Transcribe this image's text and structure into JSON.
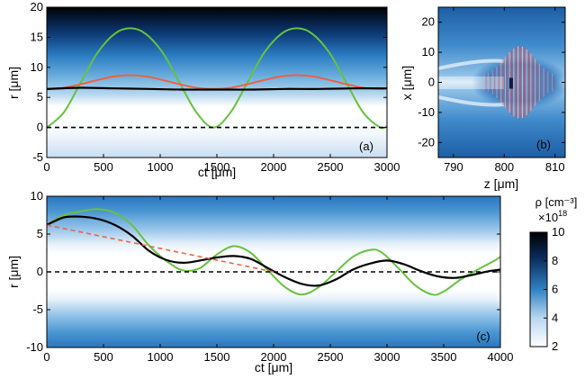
{
  "figure": {
    "colorbar": {
      "label": "ρ [cm⁻³]",
      "multiplier_base": "×10",
      "multiplier_exp": "18",
      "ticks": [
        "2",
        "4",
        "6",
        "8",
        "10"
      ],
      "range": [
        2,
        10
      ],
      "colors": [
        "#ffffff",
        "#b9d7ee",
        "#2f82c4",
        "#0a2a5a",
        "#000000"
      ]
    }
  },
  "chart_data": [
    {
      "id": "a",
      "type": "line",
      "panel_label": "(a)",
      "xlabel": "ct [μm]",
      "ylabel": "r [μm]",
      "xlim": [
        0,
        3000
      ],
      "ylim": [
        -5,
        20
      ],
      "xticks": [
        "0",
        "500",
        "1000",
        "1500",
        "2000",
        "2500",
        "3000"
      ],
      "yticks": [
        "-5",
        "0",
        "5",
        "10",
        "15",
        "20"
      ],
      "background": "density map, dark above r≈12 μm, white near r≈0–3 μm",
      "series": [
        {
          "color": "#66c23f",
          "style": "solid",
          "x": [
            0,
            150,
            300,
            450,
            600,
            735,
            870,
            1020,
            1170,
            1320,
            1470,
            1620,
            1770,
            1920,
            2070,
            2205,
            2340,
            2490,
            2640,
            2790,
            2940,
            3000
          ],
          "y": [
            0,
            2.5,
            7.5,
            12.5,
            15.6,
            16.5,
            15.6,
            12.5,
            7.5,
            2.5,
            0,
            2.5,
            7.5,
            12.5,
            15.6,
            16.5,
            15.6,
            12.5,
            7.5,
            2.5,
            0,
            0.2
          ]
        },
        {
          "color": "#f06040",
          "style": "solid",
          "x": [
            0,
            150,
            300,
            450,
            600,
            735,
            870,
            1020,
            1170,
            1320,
            1470,
            1620,
            1770,
            1920,
            2070,
            2205,
            2340,
            2490,
            2640,
            2790,
            2940,
            3000
          ],
          "y": [
            6.4,
            6.6,
            7.2,
            7.9,
            8.5,
            8.7,
            8.5,
            7.9,
            7.2,
            6.6,
            6.4,
            6.6,
            7.2,
            7.9,
            8.5,
            8.7,
            8.5,
            7.9,
            7.2,
            6.6,
            6.4,
            6.5
          ]
        },
        {
          "color": "#000000",
          "style": "solid",
          "x": [
            0,
            300,
            600,
            900,
            1200,
            1500,
            1800,
            2100,
            2400,
            2700,
            3000
          ],
          "y": [
            6.4,
            6.6,
            6.5,
            6.4,
            6.3,
            6.3,
            6.3,
            6.4,
            6.4,
            6.5,
            6.5
          ]
        },
        {
          "color": "#000000",
          "style": "dashed",
          "x": [
            0,
            3000
          ],
          "y": [
            0,
            0
          ]
        }
      ]
    },
    {
      "id": "b",
      "type": "heatmap",
      "panel_label": "(b)",
      "xlabel": "z [μm]",
      "ylabel": "x [μm]",
      "xlim": [
        787,
        812
      ],
      "ylim": [
        -25,
        25
      ],
      "xticks": [
        "790",
        "800",
        "810"
      ],
      "yticks": [
        "-20",
        "-10",
        "0",
        "10",
        "20"
      ]
    },
    {
      "id": "c",
      "type": "line",
      "panel_label": "(c)",
      "xlabel": "ct [μm]",
      "ylabel": "r [μm]",
      "xlim": [
        0,
        4000
      ],
      "ylim": [
        -10,
        10
      ],
      "xticks": [
        "0",
        "500",
        "1000",
        "1500",
        "2000",
        "2500",
        "3000",
        "3500",
        "4000"
      ],
      "yticks": [
        "-10",
        "-5",
        "0",
        "5",
        "10"
      ],
      "background": "density map, white band near r≈0, darker toward |r|=10 μm",
      "series": [
        {
          "color": "#66c23f",
          "style": "solid",
          "x": [
            0,
            150,
            300,
            450,
            600,
            750,
            900,
            1050,
            1200,
            1350,
            1500,
            1650,
            1800,
            1950,
            2100,
            2250,
            2400,
            2550,
            2700,
            2850,
            2950,
            3100,
            3250,
            3400,
            3500,
            3650,
            3800,
            3950,
            4000
          ],
          "y": [
            6.2,
            7.5,
            8.0,
            8.3,
            7.8,
            6.2,
            3.5,
            1.5,
            0.2,
            0.5,
            2.3,
            3.4,
            2.5,
            0.2,
            -2.0,
            -3.0,
            -2.0,
            0.0,
            2.0,
            2.9,
            2.6,
            0.5,
            -1.8,
            -3.0,
            -2.6,
            -1.0,
            0.3,
            1.5,
            2.0
          ]
        },
        {
          "color": "#000000",
          "style": "solid",
          "x": [
            0,
            150,
            300,
            450,
            600,
            750,
            900,
            1050,
            1200,
            1350,
            1500,
            1650,
            1800,
            1950,
            2100,
            2250,
            2400,
            2550,
            2700,
            2850,
            3000,
            3150,
            3300,
            3450,
            3600,
            3750,
            3900,
            4000
          ],
          "y": [
            6.2,
            7.2,
            7.3,
            7.0,
            6.2,
            4.8,
            2.8,
            1.6,
            1.2,
            1.5,
            1.9,
            2.1,
            1.7,
            0.5,
            -0.7,
            -1.6,
            -1.8,
            -1.0,
            0.3,
            1.1,
            1.5,
            1.0,
            0.1,
            -0.6,
            -0.8,
            -0.4,
            0.1,
            0.3
          ]
        },
        {
          "color": "#f06040",
          "style": "dashed",
          "x": [
            0,
            2000
          ],
          "y": [
            6.2,
            0
          ]
        },
        {
          "color": "#000000",
          "style": "dashed",
          "x": [
            0,
            4000
          ],
          "y": [
            0,
            0
          ]
        }
      ]
    }
  ]
}
